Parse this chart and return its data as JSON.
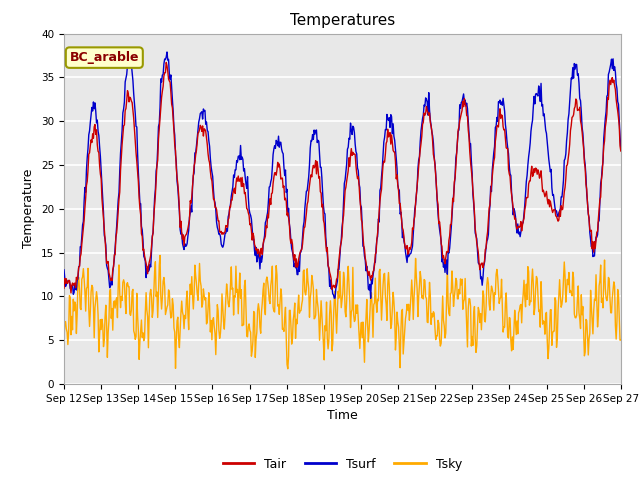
{
  "title": "Temperatures",
  "xlabel": "Time",
  "ylabel": "Temperature",
  "annotation": "BC_arable",
  "ylim": [
    0,
    40
  ],
  "tick_labels": [
    "Sep 12",
    "Sep 13",
    "Sep 14",
    "Sep 15",
    "Sep 16",
    "Sep 17",
    "Sep 18",
    "Sep 19",
    "Sep 20",
    "Sep 21",
    "Sep 22",
    "Sep 23",
    "Sep 24",
    "Sep 25",
    "Sep 26",
    "Sep 27"
  ],
  "legend_labels": [
    "Tair",
    "Tsurf",
    "Tsky"
  ],
  "colors": {
    "Tair": "#cc0000",
    "Tsurf": "#0000cc",
    "Tsky": "#ffaa00"
  },
  "bg_color": "#e8e8e8",
  "grid_color": "white",
  "title_fontsize": 11,
  "label_fontsize": 9,
  "tick_fontsize": 7.5
}
